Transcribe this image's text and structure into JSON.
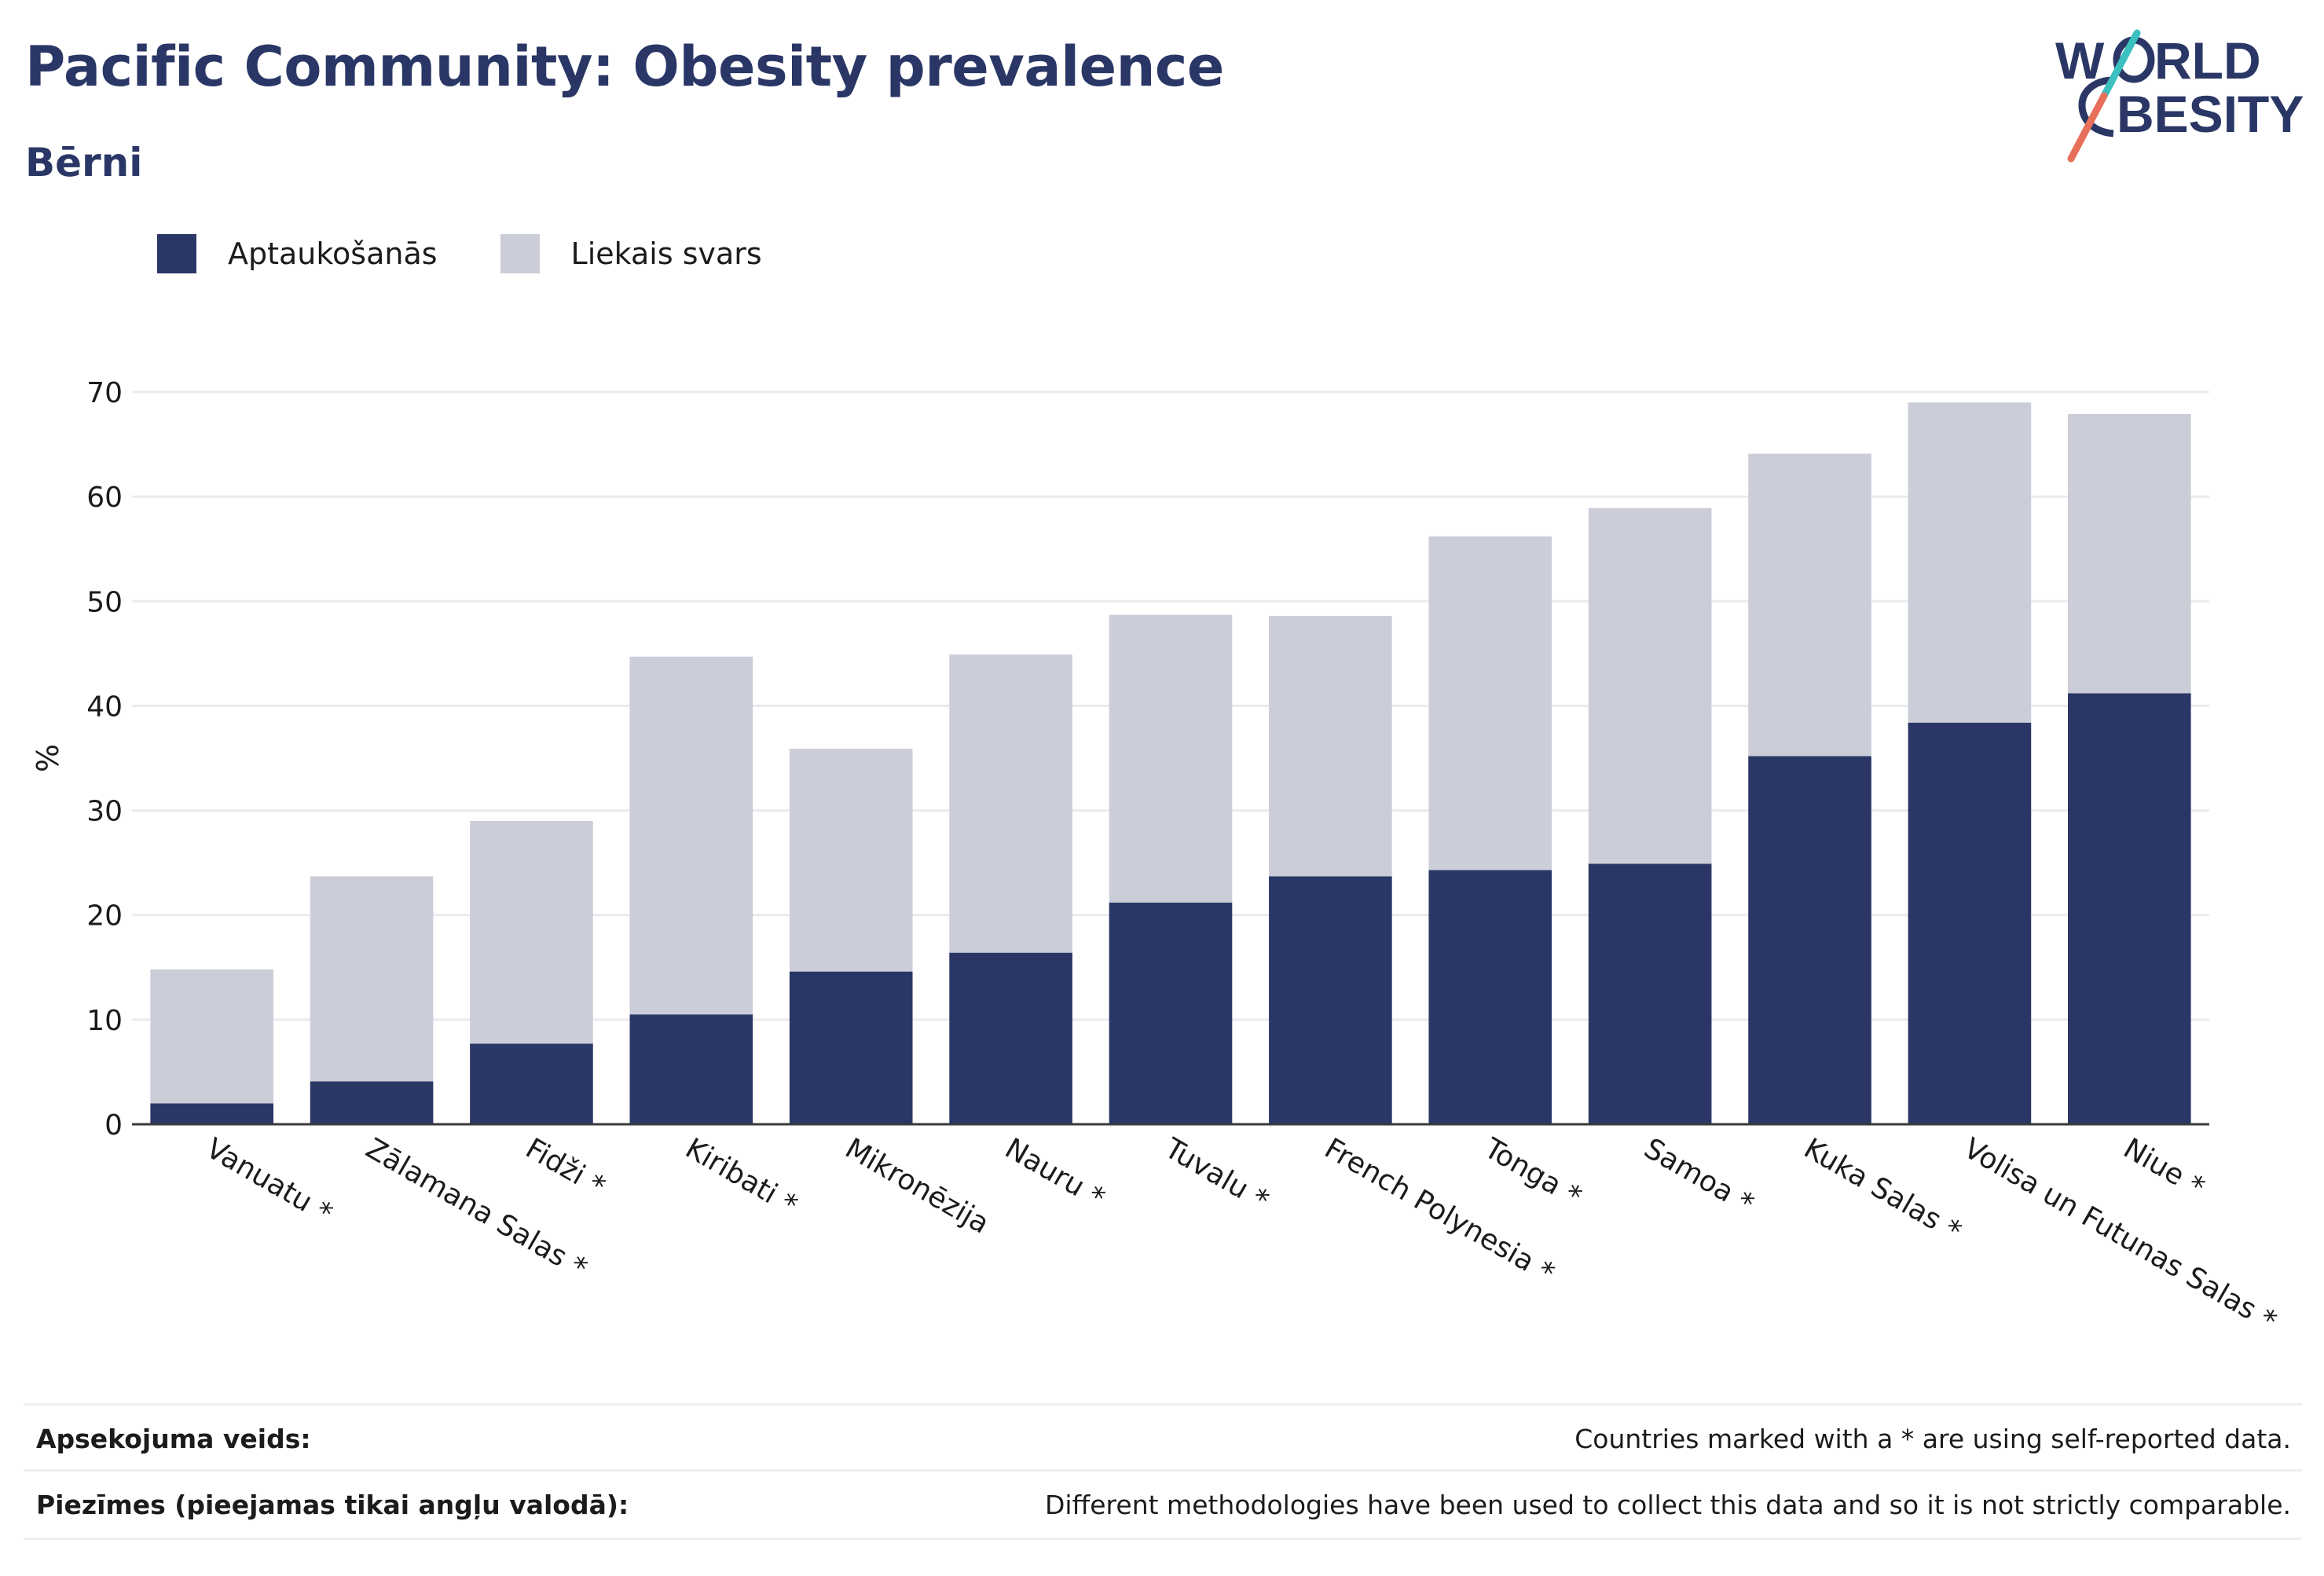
{
  "header": {
    "title": "Pacific Community: Obesity prevalence",
    "subtitle": "Bērni"
  },
  "logo": {
    "line1": "W",
    "line1b": "RLD",
    "line2b": "BESITY"
  },
  "legend": [
    {
      "label": "Aptaukošanās",
      "color": "#2a3766"
    },
    {
      "label": "Liekais svars",
      "color": "#cbcdd8"
    }
  ],
  "chart_data": {
    "type": "bar",
    "stacked": true,
    "ylabel": "%",
    "ylim": [
      0,
      70
    ],
    "yticks": [
      0,
      10,
      20,
      30,
      40,
      50,
      60,
      70
    ],
    "grid": true,
    "categories": [
      "Vanuatu *",
      "Zālamana Salas *",
      "Fidži *",
      "Kiribati *",
      "Mikronēzija",
      "Nauru *",
      "Tuvalu *",
      "French Polynesia *",
      "Tonga *",
      "Samoa *",
      "Kuka Salas *",
      "Volisa un Futunas Salas *",
      "Niue *"
    ],
    "series": [
      {
        "name": "Aptaukošanās",
        "color": "#2a3766",
        "values": [
          2.0,
          4.1,
          7.7,
          10.5,
          14.6,
          16.4,
          21.2,
          23.7,
          24.3,
          24.9,
          35.2,
          38.4,
          41.2
        ]
      },
      {
        "name": "Liekais svars",
        "color": "#cbcdd8",
        "values": [
          12.8,
          19.6,
          21.3,
          34.2,
          21.3,
          28.5,
          27.5,
          24.9,
          31.9,
          34.0,
          28.9,
          30.6,
          26.7
        ]
      }
    ]
  },
  "footer": [
    {
      "label": "Apsekojuma veids:",
      "value": "Countries marked with a * are using self-reported data."
    },
    {
      "label": "Piezīmes (pieejamas tikai angļu valodā):",
      "value": "Different methodologies have been used to collect this data and so it is not strictly comparable."
    }
  ]
}
